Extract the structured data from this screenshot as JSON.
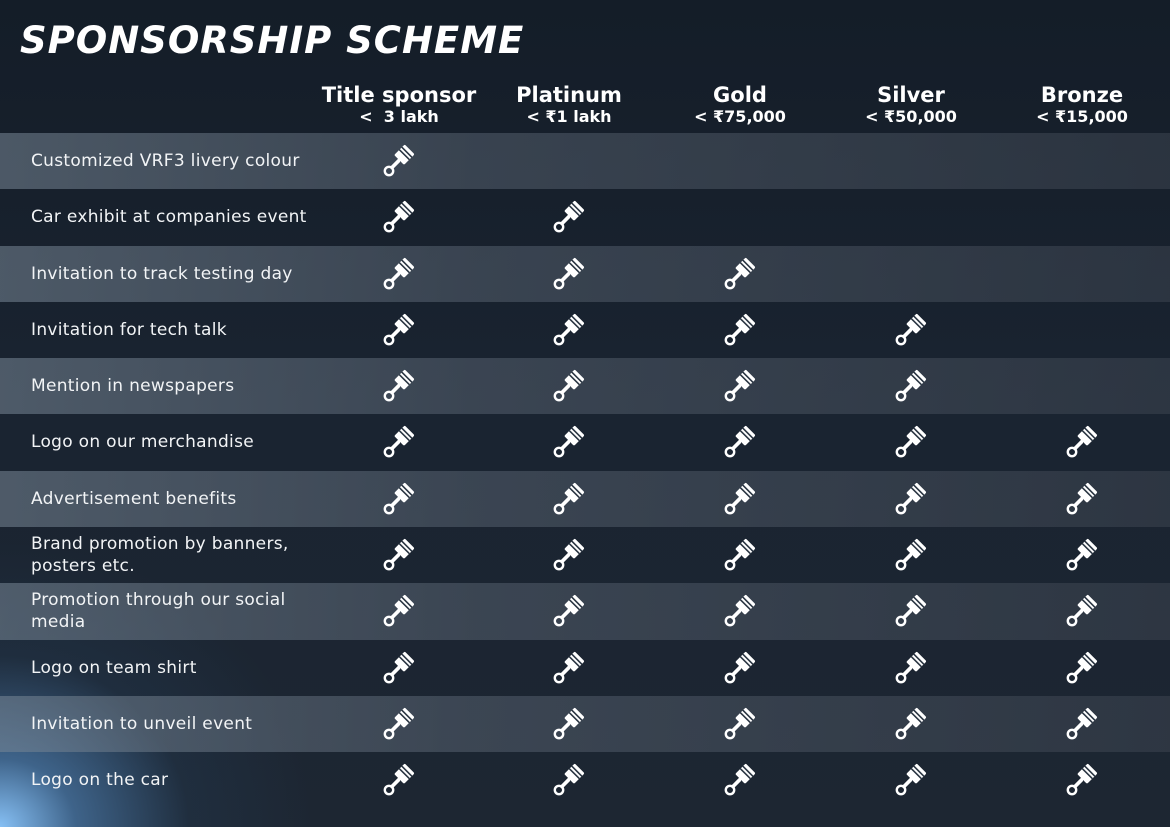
{
  "title": "SPONSORSHIP SCHEME",
  "icon": "piston-icon",
  "colors": {
    "text": "#ffffff",
    "background": "#16202c",
    "glow": "#8cc8ff"
  },
  "tiers": [
    {
      "name": "Title sponsor",
      "price": "<  3 lakh"
    },
    {
      "name": "Platinum",
      "price": "< ₹1 lakh"
    },
    {
      "name": "Gold",
      "price": "< ₹75,000"
    },
    {
      "name": "Silver",
      "price": "< ₹50,000"
    },
    {
      "name": "Bronze",
      "price": "< ₹15,000"
    }
  ],
  "rows": [
    {
      "feature": "Customized VRF3 livery colour",
      "included": [
        true,
        false,
        false,
        false,
        false
      ]
    },
    {
      "feature": "Car exhibit at companies event",
      "included": [
        true,
        true,
        false,
        false,
        false
      ]
    },
    {
      "feature": "Invitation to track testing day",
      "included": [
        true,
        true,
        true,
        false,
        false
      ]
    },
    {
      "feature": "Invitation for tech talk",
      "included": [
        true,
        true,
        true,
        true,
        false
      ]
    },
    {
      "feature": "Mention in newspapers",
      "included": [
        true,
        true,
        true,
        true,
        false
      ]
    },
    {
      "feature": "Logo on our merchandise",
      "included": [
        true,
        true,
        true,
        true,
        true
      ]
    },
    {
      "feature": "Advertisement benefits",
      "included": [
        true,
        true,
        true,
        true,
        true
      ]
    },
    {
      "feature": "Brand promotion by banners, posters etc.",
      "included": [
        true,
        true,
        true,
        true,
        true
      ]
    },
    {
      "feature": "Promotion through our social media",
      "included": [
        true,
        true,
        true,
        true,
        true
      ]
    },
    {
      "feature": "Logo on team shirt",
      "included": [
        true,
        true,
        true,
        true,
        true
      ]
    },
    {
      "feature": "Invitation to unveil event",
      "included": [
        true,
        true,
        true,
        true,
        true
      ]
    },
    {
      "feature": "Logo on the car",
      "included": [
        true,
        true,
        true,
        true,
        true
      ]
    }
  ]
}
